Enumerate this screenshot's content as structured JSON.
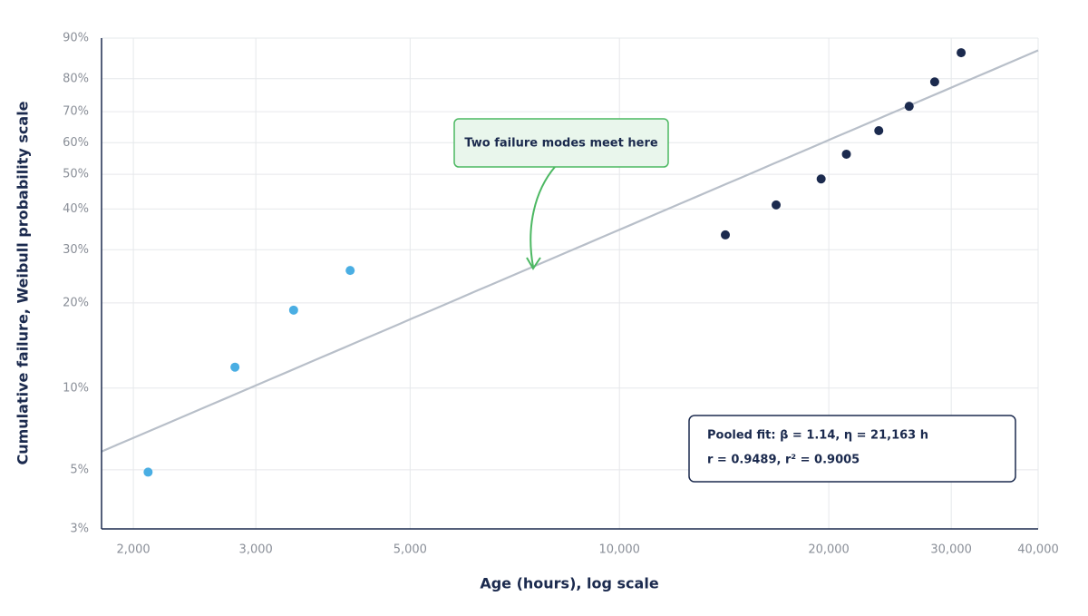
{
  "chart_data": {
    "type": "weibull_scatter",
    "x_label": "Age (hours), log scale",
    "y_label": "Cumulative failure, Weibull probability scale",
    "x_scale": "log",
    "y_scale": "weibull",
    "grid": true,
    "xlim": [
      1800,
      40000
    ],
    "xticks": [
      {
        "value": 2000,
        "label": "2,000"
      },
      {
        "value": 3000,
        "label": "3,000"
      },
      {
        "value": 5000,
        "label": "5,000"
      },
      {
        "value": 10000,
        "label": "10,000"
      },
      {
        "value": 20000,
        "label": "20,000"
      },
      {
        "value": 30000,
        "label": "30,000"
      },
      {
        "value": 40000,
        "label": "40,000"
      }
    ],
    "ylim": [
      3,
      90
    ],
    "yticks": [
      {
        "value": 3,
        "label": "3%"
      },
      {
        "value": 5,
        "label": "5%"
      },
      {
        "value": 10,
        "label": "10%"
      },
      {
        "value": 20,
        "label": "20%"
      },
      {
        "value": 30,
        "label": "30%"
      },
      {
        "value": 40,
        "label": "40%"
      },
      {
        "value": 50,
        "label": "50%"
      },
      {
        "value": 60,
        "label": "60%"
      },
      {
        "value": 70,
        "label": "70%"
      },
      {
        "value": 80,
        "label": "80%"
      },
      {
        "value": 90,
        "label": "90%"
      }
    ],
    "series": [
      {
        "color": "#4aaee3",
        "x": [
          2100,
          2800,
          3400,
          4100
        ],
        "values": [
          4.9,
          11.9,
          18.9,
          25.7
        ]
      },
      {
        "color": "#1b2a4e",
        "x": [
          14200,
          16800,
          19500,
          21200,
          23600,
          26100,
          28400,
          31000
        ],
        "values": [
          33.4,
          41.1,
          48.6,
          56.3,
          63.9,
          71.7,
          79.1,
          86.8
        ]
      }
    ],
    "fit": {
      "beta": 1.14,
      "eta": 21163,
      "color": "#b8bfc9"
    },
    "callout": "Two failure modes meet here",
    "fit_box": [
      "Pooled fit: β = 1.14, η = 21,163 h",
      "r = 0.9489, r² = 0.9005"
    ]
  }
}
